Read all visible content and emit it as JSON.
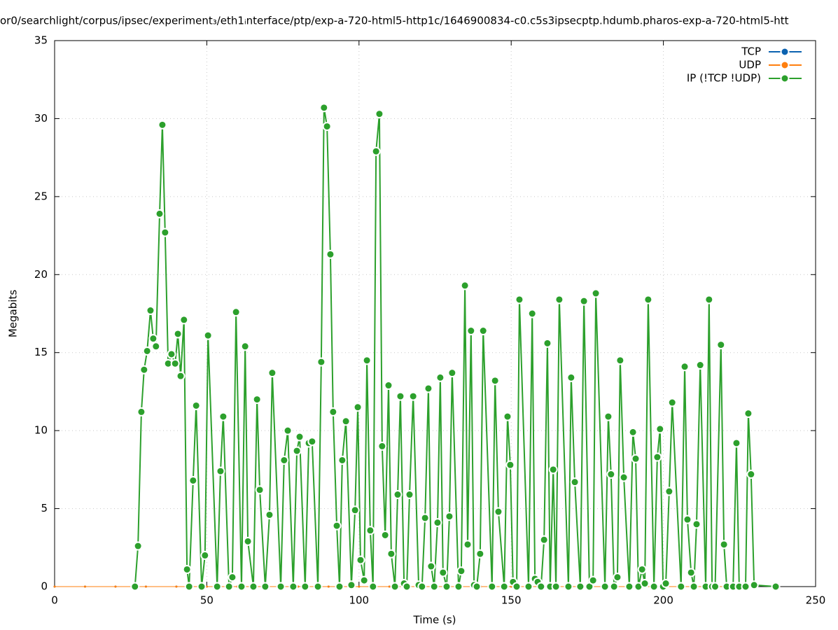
{
  "chart_data": {
    "type": "line",
    "title": "or0/searchlight/corpus/ipsec/experiment₃/eth1ᵢnterface/ptp/exp-a-720-html5-http1c/1646900834-c0.c5s3ipsecptp.hdumb.pharos-exp-a-720-html5-htt",
    "x_label": "Time (s)",
    "y_label": "Megabits",
    "xlim": [
      0,
      250
    ],
    "xticks": [
      0,
      50,
      100,
      150,
      200,
      250
    ],
    "ylim": [
      0,
      35
    ],
    "yticks": [
      0,
      5,
      10,
      15,
      20,
      25,
      30,
      35
    ],
    "grid": true,
    "legend": "top-right",
    "series": [
      {
        "name": "TCP",
        "color": "#0b62b0",
        "x": [
          0,
          10,
          20,
          30,
          40,
          50,
          60,
          70,
          80,
          90,
          100,
          110,
          120,
          130,
          140,
          150,
          160,
          170,
          180,
          190,
          200,
          210,
          220,
          230
        ],
        "values": [
          0,
          0,
          0,
          0,
          0,
          0,
          0,
          0,
          0,
          0,
          0,
          0,
          0,
          0,
          0,
          0,
          0,
          0,
          0,
          0,
          0,
          0,
          0,
          0
        ]
      },
      {
        "name": "UDP",
        "color": "#ff7f0e",
        "x": [
          0,
          10,
          20,
          30,
          40,
          50,
          60,
          70,
          80,
          90,
          100,
          110,
          120,
          130,
          140,
          150,
          160,
          170,
          180,
          190,
          200,
          210,
          220,
          230
        ],
        "values": [
          0,
          0,
          0,
          0,
          0,
          0,
          0,
          0,
          0,
          0,
          0,
          0,
          0,
          0,
          0,
          0,
          0,
          0,
          0,
          0,
          0,
          0,
          0,
          0
        ]
      },
      {
        "name": "IP (!TCP  !UDP)",
        "color": "#2ca02c",
        "x": [
          26.4,
          27.4,
          28.5,
          29.4,
          30.4,
          31.5,
          32.4,
          33.3,
          34.5,
          35.4,
          36.3,
          37.3,
          38.4,
          39.6,
          40.5,
          41.4,
          42.5,
          43.5,
          44.2,
          45.5,
          46.5,
          48.3,
          49.4,
          50.4,
          53.4,
          54.5,
          55.4,
          57.3,
          58.4,
          59.6,
          61.4,
          62.6,
          63.5,
          65.3,
          66.5,
          67.4,
          69.2,
          70.6,
          71.5,
          74.3,
          75.4,
          76.6,
          78.4,
          79.6,
          80.5,
          82.3,
          83.5,
          84.6,
          86.5,
          87.6,
          88.5,
          89.5,
          90.6,
          91.5,
          92.7,
          93.6,
          94.5,
          95.7,
          97.5,
          98.7,
          99.6,
          100.5,
          101.7,
          102.6,
          103.7,
          104.6,
          105.6,
          106.7,
          107.6,
          108.6,
          109.7,
          110.6,
          111.8,
          112.7,
          113.6,
          114.8,
          115.7,
          116.6,
          117.8,
          119.6,
          120.7,
          121.7,
          122.8,
          123.7,
          124.7,
          125.8,
          126.7,
          127.6,
          128.8,
          129.7,
          130.6,
          132.7,
          133.6,
          134.8,
          135.7,
          136.8,
          137.8,
          138.7,
          139.8,
          140.8,
          143.7,
          144.7,
          145.8,
          147.7,
          148.8,
          149.7,
          150.6,
          151.8,
          152.7,
          155.7,
          156.9,
          157.8,
          158.7,
          159.8,
          160.8,
          161.9,
          162.8,
          163.8,
          164.7,
          165.8,
          168.8,
          169.7,
          170.9,
          172.7,
          173.9,
          175.7,
          176.9,
          177.8,
          180.8,
          181.9,
          182.8,
          183.8,
          184.9,
          185.8,
          187.0,
          188.8,
          190.0,
          190.9,
          191.8,
          193.0,
          193.9,
          195.0,
          196.9,
          198.0,
          198.9,
          199.9,
          200.8,
          201.9,
          202.9,
          205.8,
          207.0,
          207.9,
          209.1,
          210.0,
          210.9,
          212.1,
          213.9,
          215.0,
          216.0,
          217.0,
          218.9,
          219.9,
          220.8,
          222.9,
          224.0,
          224.9,
          227.0,
          227.9,
          228.8,
          229.8,
          236.9
        ],
        "values": [
          0,
          2.6,
          11.2,
          13.9,
          15.1,
          17.7,
          15.9,
          15.4,
          23.9,
          29.6,
          22.7,
          14.3,
          14.9,
          14.3,
          16.2,
          13.5,
          17.1,
          1.1,
          0,
          6.8,
          11.6,
          0,
          2.0,
          16.1,
          0,
          7.4,
          10.9,
          0,
          0.6,
          17.6,
          0,
          15.4,
          2.9,
          0,
          12.0,
          6.2,
          0,
          4.6,
          13.7,
          0,
          8.1,
          10.0,
          0,
          8.7,
          9.6,
          0,
          9.2,
          9.3,
          0,
          14.4,
          30.7,
          29.5,
          21.3,
          11.2,
          3.9,
          0,
          8.1,
          10.6,
          0.1,
          4.9,
          11.5,
          1.7,
          0.4,
          14.5,
          3.6,
          0,
          27.9,
          30.3,
          9.0,
          3.3,
          12.9,
          2.1,
          0,
          5.9,
          12.2,
          0.2,
          0,
          5.9,
          12.2,
          0.1,
          0,
          4.4,
          12.7,
          1.3,
          0,
          4.1,
          13.4,
          0.9,
          0,
          4.5,
          13.7,
          0,
          1.0,
          19.3,
          2.7,
          16.4,
          0.1,
          0,
          2.1,
          16.4,
          0,
          13.2,
          4.8,
          0,
          10.9,
          7.8,
          0.3,
          0,
          18.4,
          0,
          17.5,
          0.5,
          0.3,
          0,
          3.0,
          15.6,
          0,
          7.5,
          0,
          18.4,
          0,
          13.4,
          6.7,
          0,
          18.3,
          0,
          0.4,
          18.8,
          0,
          10.9,
          7.2,
          0,
          0.6,
          14.5,
          7.0,
          0,
          9.9,
          8.2,
          0,
          1.1,
          0.2,
          18.4,
          0,
          8.3,
          10.1,
          0,
          0.2,
          6.1,
          11.8,
          0,
          14.1,
          4.3,
          0.9,
          0,
          4.0,
          14.2,
          0,
          18.4,
          0,
          0,
          15.5,
          2.7,
          0,
          0,
          9.2,
          0,
          0,
          11.1,
          7.2,
          0.1,
          0
        ]
      }
    ]
  }
}
